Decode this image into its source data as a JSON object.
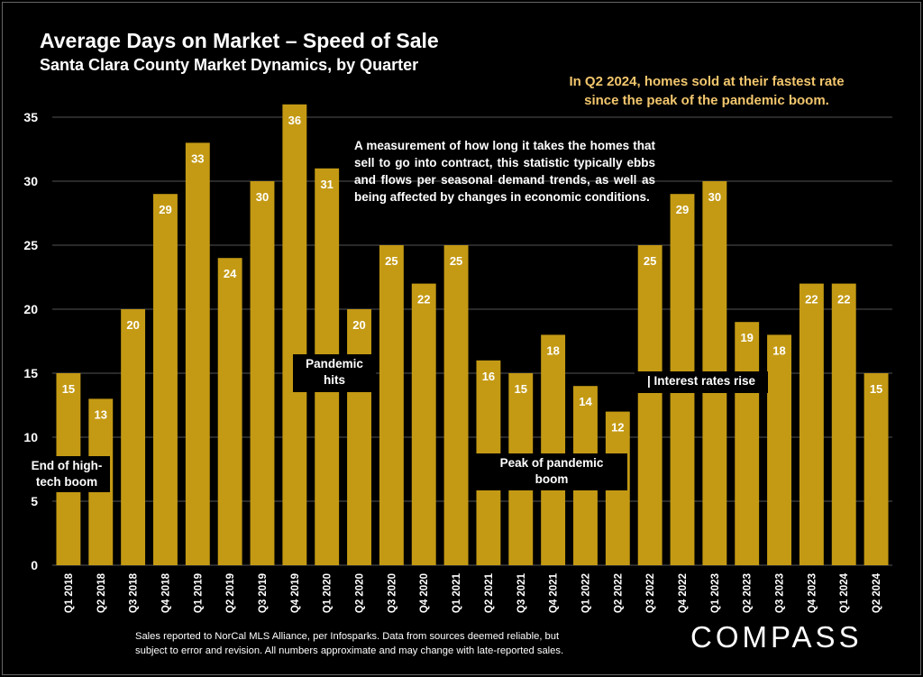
{
  "header": {
    "title": "Average Days on Market – Speed of Sale",
    "subtitle": "Santa Clara County Market Dynamics, by Quarter"
  },
  "callout": {
    "line1": "In Q2 2024, homes sold at their fastest rate",
    "line2": "since the peak of the pandemic boom."
  },
  "description": "A measurement of how long it takes the homes that sell to go into contract, this statistic typically ebbs and flows per seasonal demand trends, as well as being affected by changes in economic conditions.",
  "annotations": {
    "tech_boom_1": "End of high-",
    "tech_boom_2": "tech boom",
    "pandemic_hits_1": "Pandemic",
    "pandemic_hits_2": "hits",
    "pandemic_peak_1": "Peak of pandemic",
    "pandemic_peak_2": "boom",
    "rates_rise": "| Interest rates rise"
  },
  "footer": {
    "line1": "Sales reported to NorCal MLS Alliance, per Infosparks. Data from sources deemed reliable, but",
    "line2": "subject to error and revision. All numbers approximate and may change with late-reported sales."
  },
  "logo": "COMPASS",
  "colors": {
    "bar": "#c49a14",
    "background": "#000000",
    "callout": "#f2c66d",
    "grid": "#555555"
  },
  "chart_data": {
    "type": "bar",
    "title": "Average Days on Market – Speed of Sale",
    "subtitle": "Santa Clara County Market Dynamics, by Quarter",
    "xlabel": "",
    "ylabel": "",
    "ylim": [
      0,
      35
    ],
    "yticks": [
      0,
      5,
      10,
      15,
      20,
      25,
      30,
      35
    ],
    "grid": true,
    "categories": [
      "Q1 2018",
      "Q2 2018",
      "Q3 2018",
      "Q4 2018",
      "Q1 2019",
      "Q2 2019",
      "Q3 2019",
      "Q4 2019",
      "Q1 2020",
      "Q2 2020",
      "Q3 2020",
      "Q4 2020",
      "Q1 2021",
      "Q2 2021",
      "Q3 2021",
      "Q4 2021",
      "Q1 2022",
      "Q2 2022",
      "Q3 2022",
      "Q4 2022",
      "Q1 2023",
      "Q2 2023",
      "Q3 2023",
      "Q4 2023",
      "Q1 2024",
      "Q2 2024"
    ],
    "values": [
      15,
      13,
      20,
      29,
      33,
      24,
      30,
      36,
      31,
      20,
      25,
      22,
      25,
      16,
      15,
      18,
      14,
      12,
      25,
      29,
      30,
      19,
      18,
      22,
      22,
      15
    ]
  }
}
